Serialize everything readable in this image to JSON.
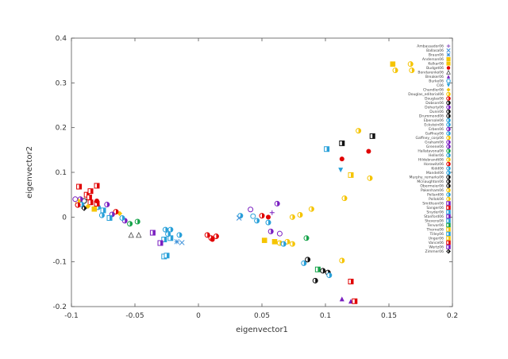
{
  "chart_data": {
    "type": "scatter",
    "title": "",
    "xlabel": "eigenvector1",
    "ylabel": "eigenvector2",
    "xlim": [
      -0.1,
      0.2
    ],
    "ylim": [
      -0.2,
      0.4
    ],
    "xticks": [
      -0.1,
      -0.05,
      0,
      0.05,
      0.1,
      0.15,
      0.2
    ],
    "yticks": [
      -0.2,
      -0.1,
      0,
      0.1,
      0.2,
      0.3,
      0.4
    ],
    "xtick_labels": [
      "-0.1",
      "-0.05",
      "0",
      "0.05",
      "0.1",
      "0.15",
      "0.2"
    ],
    "ytick_labels": [
      "-0.2",
      "-0.1",
      "0",
      "0.1",
      "0.2",
      "0.3",
      "0.4"
    ],
    "grid": false,
    "legend_position": "right-inside",
    "legend": [
      {
        "name": "Ambassador06",
        "color": "#8a4fbf",
        "symbol": "plus"
      },
      {
        "name": "Ballasa06",
        "color": "#3a8fd9",
        "symbol": "cross"
      },
      {
        "name": "Braun06",
        "color": "#3a8fd9",
        "symbol": "asterisk"
      },
      {
        "name": "Anderson06",
        "color": "#f5c400",
        "symbol": "square"
      },
      {
        "name": "Kelkar06",
        "color": "#f5c400",
        "symbol": "square"
      },
      {
        "name": "Budget06",
        "color": "#e00000",
        "symbol": "circle"
      },
      {
        "name": "Bondarenko06",
        "color": "#444444",
        "symbol": "triangle-open"
      },
      {
        "name": "Breaker06",
        "color": "#7a1fc0",
        "symbol": "triangle"
      },
      {
        "name": "Burke06",
        "color": "#29a0d9",
        "symbol": "circle-open"
      },
      {
        "name": "C06",
        "color": "#29a0d9",
        "symbol": "triangle-down"
      },
      {
        "name": "Chandler06",
        "color": "#f5c400",
        "symbol": "diamond"
      },
      {
        "name": "Douglas_editorial06",
        "color": "#f5c400",
        "symbol": "circle-half"
      },
      {
        "name": "Douglas06",
        "color": "#e00000",
        "symbol": "circle-half"
      },
      {
        "name": "Dobson06",
        "color": "#111111",
        "symbol": "circle-half"
      },
      {
        "name": "Doherty06",
        "color": "#7a1fc0",
        "symbol": "circle-half"
      },
      {
        "name": "Dunn06",
        "color": "#111111",
        "symbol": "circle-half"
      },
      {
        "name": "Drummond06",
        "color": "#111111",
        "symbol": "circle-half"
      },
      {
        "name": "Ebersole06",
        "color": "#29a0d9",
        "symbol": "circle-half"
      },
      {
        "name": "Eckstein06",
        "color": "#29a0d9",
        "symbol": "circle-half"
      },
      {
        "name": "Erben06",
        "color": "#7a1fc0",
        "symbol": "circle-half"
      },
      {
        "name": "Gaffney06",
        "color": "#29a0d9",
        "symbol": "circle-half"
      },
      {
        "name": "Gaffney_corp06",
        "color": "#f5c400",
        "symbol": "circle-half"
      },
      {
        "name": "Graham06",
        "color": "#7a1fc0",
        "symbol": "circle-half"
      },
      {
        "name": "Greene06",
        "color": "#7a1fc0",
        "symbol": "circle-half"
      },
      {
        "name": "Hallatavona06",
        "color": "#16a34a",
        "symbol": "circle-half"
      },
      {
        "name": "Heller06",
        "color": "#29a0d9",
        "symbol": "circle-half"
      },
      {
        "name": "Hildebrandt06",
        "color": "#f5c400",
        "symbol": "circle-half"
      },
      {
        "name": "Horowitz06",
        "color": "#e00000",
        "symbol": "circle-half"
      },
      {
        "name": "Kidd06",
        "color": "#29a0d9",
        "symbol": "circle-half"
      },
      {
        "name": "Mandel06",
        "color": "#29a0d9",
        "symbol": "circle-half"
      },
      {
        "name": "Murphy_remarks06",
        "color": "#111111",
        "symbol": "circle-half"
      },
      {
        "name": "Mcnaughton06",
        "color": "#111111",
        "symbol": "circle-half"
      },
      {
        "name": "Obermeier06",
        "color": "#111111",
        "symbol": "circle-half"
      },
      {
        "name": "Pakenham06",
        "color": "#f5c400",
        "symbol": "circle-half"
      },
      {
        "name": "Pollard06",
        "color": "#29a0d9",
        "symbol": "circle-half"
      },
      {
        "name": "Pollok06",
        "color": "#f5c400",
        "symbol": "circle-half"
      },
      {
        "name": "Smithson06",
        "color": "#7a1fc0",
        "symbol": "square-half"
      },
      {
        "name": "Sanger06",
        "color": "#e00000",
        "symbol": "square-half"
      },
      {
        "name": "Snyder06",
        "color": "#29a0d9",
        "symbol": "square-half"
      },
      {
        "name": "Stanford06",
        "color": "#7a1fc0",
        "symbol": "square-half"
      },
      {
        "name": "Stevens06",
        "color": "#29a0d9",
        "symbol": "square-half"
      },
      {
        "name": "Tenvor06",
        "color": "#16a34a",
        "symbol": "square-half"
      },
      {
        "name": "Thorne06",
        "color": "#f5c400",
        "symbol": "square-half"
      },
      {
        "name": "Tilley06",
        "color": "#29a0d9",
        "symbol": "square-half"
      },
      {
        "name": "Unger06",
        "color": "#f5c400",
        "symbol": "square-half"
      },
      {
        "name": "Vance06",
        "color": "#e00000",
        "symbol": "square-half"
      },
      {
        "name": "Wertz06",
        "color": "#7a1fc0",
        "symbol": "square-half"
      },
      {
        "name": "Zimmer06",
        "color": "#111111",
        "symbol": "diamond-half"
      }
    ],
    "points": [
      {
        "x": 0.153,
        "y": 0.342,
        "color": "#f5c400",
        "symbol": "square"
      },
      {
        "x": 0.167,
        "y": 0.342,
        "color": "#f5c400",
        "symbol": "circle-half"
      },
      {
        "x": 0.155,
        "y": 0.328,
        "color": "#f5c400",
        "symbol": "circle-half"
      },
      {
        "x": 0.168,
        "y": 0.328,
        "color": "#f5c400",
        "symbol": "circle-half"
      },
      {
        "x": 0.126,
        "y": 0.193,
        "color": "#f5c400",
        "symbol": "circle-half"
      },
      {
        "x": 0.137,
        "y": 0.181,
        "color": "#111111",
        "symbol": "square-half"
      },
      {
        "x": 0.113,
        "y": 0.165,
        "color": "#111111",
        "symbol": "square-half"
      },
      {
        "x": 0.101,
        "y": 0.152,
        "color": "#29a0d9",
        "symbol": "square-half"
      },
      {
        "x": 0.134,
        "y": 0.147,
        "color": "#e00000",
        "symbol": "circle"
      },
      {
        "x": 0.113,
        "y": 0.13,
        "color": "#e00000",
        "symbol": "circle"
      },
      {
        "x": 0.112,
        "y": 0.105,
        "color": "#29a0d9",
        "symbol": "triangle-down"
      },
      {
        "x": 0.12,
        "y": 0.094,
        "color": "#f5c400",
        "symbol": "square-half"
      },
      {
        "x": 0.135,
        "y": 0.087,
        "color": "#f5c400",
        "symbol": "circle-half"
      },
      {
        "x": 0.115,
        "y": 0.042,
        "color": "#f5c400",
        "symbol": "circle-half"
      },
      {
        "x": 0.089,
        "y": 0.018,
        "color": "#f5c400",
        "symbol": "circle-half"
      },
      {
        "x": 0.08,
        "y": 0.005,
        "color": "#f5c400",
        "symbol": "circle-half"
      },
      {
        "x": 0.074,
        "y": 0.0,
        "color": "#f5c400",
        "symbol": "circle-half"
      },
      {
        "x": 0.085,
        "y": -0.047,
        "color": "#16a34a",
        "symbol": "circle-half"
      },
      {
        "x": 0.083,
        "y": -0.103,
        "color": "#29a0d9",
        "symbol": "circle-half"
      },
      {
        "x": 0.086,
        "y": -0.095,
        "color": "#111111",
        "symbol": "circle-half"
      },
      {
        "x": 0.094,
        "y": -0.117,
        "color": "#16a34a",
        "symbol": "square-half"
      },
      {
        "x": 0.098,
        "y": -0.12,
        "color": "#111111",
        "symbol": "circle-half"
      },
      {
        "x": 0.102,
        "y": -0.124,
        "color": "#111111",
        "symbol": "circle-half"
      },
      {
        "x": 0.103,
        "y": -0.13,
        "color": "#29a0d9",
        "symbol": "circle-half"
      },
      {
        "x": 0.092,
        "y": -0.142,
        "color": "#111111",
        "symbol": "circle-half"
      },
      {
        "x": 0.113,
        "y": -0.097,
        "color": "#f5c400",
        "symbol": "circle-half"
      },
      {
        "x": 0.12,
        "y": -0.144,
        "color": "#e00000",
        "symbol": "square-half"
      },
      {
        "x": 0.113,
        "y": -0.183,
        "color": "#7a1fc0",
        "symbol": "triangle"
      },
      {
        "x": 0.12,
        "y": -0.188,
        "color": "#7a1fc0",
        "symbol": "triangle"
      },
      {
        "x": 0.123,
        "y": -0.188,
        "color": "#e00000",
        "symbol": "square-half"
      },
      {
        "x": 0.062,
        "y": 0.03,
        "color": "#7a1fc0",
        "symbol": "circle-half"
      },
      {
        "x": 0.058,
        "y": 0.01,
        "color": "#7a1fc0",
        "symbol": "plus"
      },
      {
        "x": 0.055,
        "y": 0.0,
        "color": "#e00000",
        "symbol": "circle"
      },
      {
        "x": 0.05,
        "y": 0.003,
        "color": "#e00000",
        "symbol": "circle-half"
      },
      {
        "x": 0.043,
        "y": 0.002,
        "color": "#29a0d9",
        "symbol": "circle-open"
      },
      {
        "x": 0.041,
        "y": 0.017,
        "color": "#7a1fc0",
        "symbol": "circle-open"
      },
      {
        "x": 0.033,
        "y": 0.003,
        "color": "#29a0d9",
        "symbol": "circle-half"
      },
      {
        "x": 0.032,
        "y": -0.002,
        "color": "#3a8fd9",
        "symbol": "cross"
      },
      {
        "x": 0.046,
        "y": -0.008,
        "color": "#29a0d9",
        "symbol": "circle-half"
      },
      {
        "x": 0.055,
        "y": -0.012,
        "color": "#29a0d9",
        "symbol": "circle-half"
      },
      {
        "x": 0.057,
        "y": -0.032,
        "color": "#7a1fc0",
        "symbol": "circle-half"
      },
      {
        "x": 0.064,
        "y": -0.037,
        "color": "#7a1fc0",
        "symbol": "circle-open"
      },
      {
        "x": 0.052,
        "y": -0.052,
        "color": "#f5c400",
        "symbol": "square"
      },
      {
        "x": 0.06,
        "y": -0.055,
        "color": "#f5c400",
        "symbol": "square"
      },
      {
        "x": 0.064,
        "y": -0.058,
        "color": "#f5c400",
        "symbol": "circle-half"
      },
      {
        "x": 0.07,
        "y": -0.055,
        "color": "#f5c400",
        "symbol": "circle-half"
      },
      {
        "x": 0.074,
        "y": -0.06,
        "color": "#f5c400",
        "symbol": "circle-half"
      },
      {
        "x": 0.067,
        "y": -0.06,
        "color": "#29a0d9",
        "symbol": "circle-half"
      },
      {
        "x": 0.007,
        "y": -0.04,
        "color": "#e00000",
        "symbol": "circle-half"
      },
      {
        "x": 0.01,
        "y": -0.047,
        "color": "#e00000",
        "symbol": "circle-half"
      },
      {
        "x": 0.014,
        "y": -0.043,
        "color": "#e00000",
        "symbol": "circle-half"
      },
      {
        "x": 0.011,
        "y": -0.05,
        "color": "#e00000",
        "symbol": "circle"
      },
      {
        "x": -0.015,
        "y": -0.04,
        "color": "#29a0d9",
        "symbol": "circle-half"
      },
      {
        "x": -0.017,
        "y": -0.055,
        "color": "#3a8fd9",
        "symbol": "asterisk"
      },
      {
        "x": -0.013,
        "y": -0.057,
        "color": "#3a8fd9",
        "symbol": "cross"
      },
      {
        "x": -0.022,
        "y": -0.047,
        "color": "#29a0d9",
        "symbol": "square-half"
      },
      {
        "x": -0.027,
        "y": -0.05,
        "color": "#29a0d9",
        "symbol": "square-half"
      },
      {
        "x": -0.026,
        "y": -0.028,
        "color": "#29a0d9",
        "symbol": "circle-half"
      },
      {
        "x": -0.022,
        "y": -0.028,
        "color": "#29a0d9",
        "symbol": "circle-half"
      },
      {
        "x": -0.024,
        "y": -0.038,
        "color": "#29a0d9",
        "symbol": "circle-half"
      },
      {
        "x": -0.03,
        "y": -0.058,
        "color": "#7a1fc0",
        "symbol": "square-half"
      },
      {
        "x": -0.036,
        "y": -0.035,
        "color": "#7a1fc0",
        "symbol": "square-half"
      },
      {
        "x": -0.027,
        "y": -0.088,
        "color": "#29a0d9",
        "symbol": "square-half"
      },
      {
        "x": -0.025,
        "y": -0.086,
        "color": "#29a0d9",
        "symbol": "square-half"
      },
      {
        "x": -0.053,
        "y": -0.04,
        "color": "#444444",
        "symbol": "triangle-open"
      },
      {
        "x": -0.047,
        "y": -0.04,
        "color": "#444444",
        "symbol": "triangle-open"
      },
      {
        "x": -0.048,
        "y": -0.01,
        "color": "#16a34a",
        "symbol": "circle-half"
      },
      {
        "x": -0.054,
        "y": -0.015,
        "color": "#16a34a",
        "symbol": "circle-half"
      },
      {
        "x": -0.058,
        "y": -0.008,
        "color": "#7a1fc0",
        "symbol": "circle-half"
      },
      {
        "x": -0.06,
        "y": -0.002,
        "color": "#29a0d9",
        "symbol": "circle-half"
      },
      {
        "x": -0.062,
        "y": 0.008,
        "color": "#f5c400",
        "symbol": "diamond"
      },
      {
        "x": -0.065,
        "y": 0.012,
        "color": "#e00000",
        "symbol": "circle-half"
      },
      {
        "x": -0.068,
        "y": 0.006,
        "color": "#7a1fc0",
        "symbol": "circle-half"
      },
      {
        "x": -0.07,
        "y": -0.002,
        "color": "#29a0d9",
        "symbol": "square-half"
      },
      {
        "x": -0.075,
        "y": 0.015,
        "color": "#29a0d9",
        "symbol": "square-half"
      },
      {
        "x": -0.076,
        "y": 0.004,
        "color": "#29a0d9",
        "symbol": "circle-half"
      },
      {
        "x": -0.079,
        "y": 0.022,
        "color": "#29a0d9",
        "symbol": "circle-half"
      },
      {
        "x": -0.082,
        "y": 0.018,
        "color": "#f5c400",
        "symbol": "square"
      },
      {
        "x": -0.08,
        "y": 0.03,
        "color": "#e00000",
        "symbol": "square-half"
      },
      {
        "x": -0.085,
        "y": 0.033,
        "color": "#e00000",
        "symbol": "square-half"
      },
      {
        "x": -0.088,
        "y": 0.05,
        "color": "#e00000",
        "symbol": "square-half"
      },
      {
        "x": -0.085,
        "y": 0.058,
        "color": "#e00000",
        "symbol": "square-half"
      },
      {
        "x": -0.08,
        "y": 0.07,
        "color": "#e00000",
        "symbol": "square-half"
      },
      {
        "x": -0.094,
        "y": 0.068,
        "color": "#e00000",
        "symbol": "square-half"
      },
      {
        "x": -0.086,
        "y": 0.044,
        "color": "#e00000",
        "symbol": "square-half"
      },
      {
        "x": -0.09,
        "y": 0.036,
        "color": "#111111",
        "symbol": "circle-open"
      },
      {
        "x": -0.093,
        "y": 0.04,
        "color": "#7a1fc0",
        "symbol": "circle-half"
      },
      {
        "x": -0.095,
        "y": 0.035,
        "color": "#f5c400",
        "symbol": "circle-half"
      },
      {
        "x": -0.097,
        "y": 0.04,
        "color": "#7a1fc0",
        "symbol": "circle-open"
      },
      {
        "x": -0.092,
        "y": 0.028,
        "color": "#29a0d9",
        "symbol": "circle-half"
      },
      {
        "x": -0.095,
        "y": 0.027,
        "color": "#e00000",
        "symbol": "circle-half"
      },
      {
        "x": -0.09,
        "y": 0.02,
        "color": "#111111",
        "symbol": "diamond-half"
      },
      {
        "x": -0.087,
        "y": 0.024,
        "color": "#f5c400",
        "symbol": "diamond"
      },
      {
        "x": -0.08,
        "y": 0.036,
        "color": "#e00000",
        "symbol": "circle"
      },
      {
        "x": -0.072,
        "y": 0.028,
        "color": "#7a1fc0",
        "symbol": "circle-half"
      }
    ]
  }
}
